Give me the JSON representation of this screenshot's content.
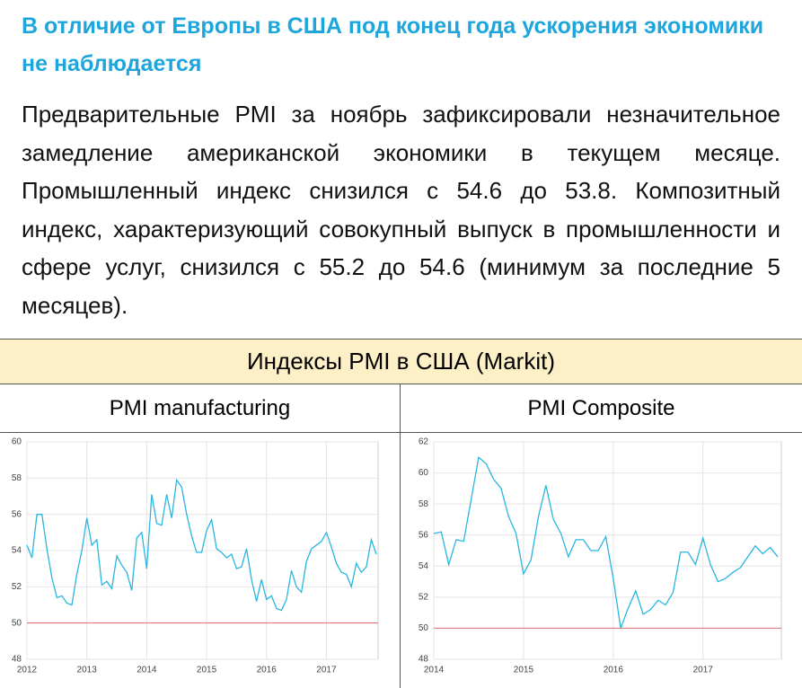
{
  "header": {
    "title": "В отличие от Европы в США под конец года ускорения экономики не наблюдается"
  },
  "paragraph": "Предварительные PMI за ноябрь зафиксировали незначительное замедление американской экономики в текущем месяце. Промышленный индекс снизился с 54.6 до 53.8. Композитный индекс, характеризующий совокупный выпуск в промышленности и сфере услуг, снизился с 55.2 до 54.6 (минимум за последние 5 месяцев).",
  "table": {
    "title": "Индексы PMI в США (Markit)"
  },
  "chart_data": [
    {
      "type": "line",
      "title": "PMI manufacturing",
      "categories": [
        "2012",
        null,
        null,
        null,
        null,
        null,
        null,
        null,
        null,
        null,
        null,
        null,
        "2013",
        null,
        null,
        null,
        null,
        null,
        null,
        null,
        null,
        null,
        null,
        null,
        "2014",
        null,
        null,
        null,
        null,
        null,
        null,
        null,
        null,
        null,
        null,
        null,
        "2015",
        null,
        null,
        null,
        null,
        null,
        null,
        null,
        null,
        null,
        null,
        null,
        "2016",
        null,
        null,
        null,
        null,
        null,
        null,
        null,
        null,
        null,
        null,
        null,
        "2017",
        null,
        null,
        null,
        null,
        null,
        null,
        null,
        null,
        null,
        null
      ],
      "series": [
        {
          "color": "#29b6e0",
          "values": [
            54.3,
            53.6,
            56.0,
            56.0,
            54.1,
            52.5,
            51.4,
            51.5,
            51.1,
            51.0,
            52.7,
            54.0,
            55.8,
            54.3,
            54.6,
            52.1,
            52.3,
            51.9,
            53.7,
            53.2,
            52.8,
            51.8,
            54.7,
            55.0,
            53.0,
            57.1,
            55.5,
            55.4,
            57.1,
            55.8,
            57.9,
            57.5,
            56.0,
            54.8,
            53.9,
            53.9,
            55.1,
            55.7,
            54.1,
            53.9,
            53.6,
            53.8,
            53.0,
            53.1,
            54.1,
            52.4,
            51.2,
            52.4,
            51.3,
            51.5,
            50.8,
            50.7,
            51.3,
            52.9,
            52.0,
            51.7,
            53.4,
            54.1,
            54.3,
            54.5,
            55.0,
            54.2,
            53.3,
            52.8,
            52.7,
            52.0,
            53.3,
            52.8,
            53.1,
            54.6,
            53.8
          ]
        }
      ],
      "ylim": [
        48,
        60
      ],
      "yticks": [
        48,
        50,
        52,
        54,
        56,
        58,
        60
      ],
      "grid": true,
      "hline": {
        "value": 50,
        "color": "#e07070"
      }
    },
    {
      "type": "line",
      "title": "PMI Composite",
      "categories": [
        "2014",
        null,
        null,
        null,
        null,
        null,
        null,
        null,
        null,
        null,
        null,
        null,
        "2015",
        null,
        null,
        null,
        null,
        null,
        null,
        null,
        null,
        null,
        null,
        null,
        "2016",
        null,
        null,
        null,
        null,
        null,
        null,
        null,
        null,
        null,
        null,
        null,
        "2017",
        null,
        null,
        null,
        null,
        null,
        null,
        null,
        null,
        null,
        null
      ],
      "series": [
        {
          "color": "#29b6e0",
          "values": [
            56.1,
            56.2,
            54.1,
            55.7,
            55.6,
            58.3,
            61.0,
            60.6,
            59.6,
            59.0,
            57.2,
            56.1,
            53.5,
            54.4,
            57.2,
            59.2,
            57.0,
            56.1,
            54.6,
            55.7,
            55.7,
            55.0,
            55.0,
            55.9,
            53.2,
            50.0,
            51.3,
            52.4,
            50.9,
            51.2,
            51.8,
            51.5,
            52.3,
            54.9,
            54.9,
            54.1,
            55.8,
            54.1,
            53.0,
            53.2,
            53.6,
            53.9,
            54.6,
            55.3,
            54.8,
            55.2,
            54.6
          ]
        }
      ],
      "ylim": [
        48,
        62
      ],
      "yticks": [
        48,
        50,
        52,
        54,
        56,
        58,
        60,
        62
      ],
      "grid": true,
      "hline": {
        "value": 50,
        "color": "#e07070"
      }
    }
  ]
}
